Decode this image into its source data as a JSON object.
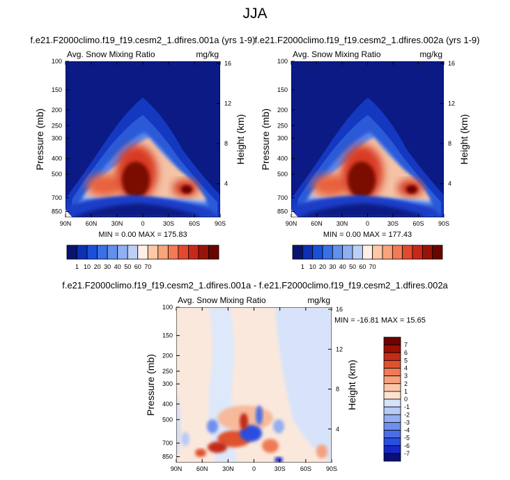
{
  "page_title": "JJA",
  "colors": {
    "top_colorbar": [
      "#08146e",
      "#0d30b4",
      "#1a4fd8",
      "#3a6fe6",
      "#6390ec",
      "#8fb0f2",
      "#bcd0f7",
      "#fff0e6",
      "#fcc8a8",
      "#f8a47d",
      "#f27a54",
      "#e24a2f",
      "#c8281a",
      "#981409",
      "#6a0500"
    ],
    "diff_colorbar": [
      "#0a0f7a",
      "#1428c8",
      "#2a4ee0",
      "#4b6ee8",
      "#6e8fee",
      "#93aef2",
      "#b7cbf7",
      "#d6e3fa",
      "#fbe3d0",
      "#fbc7a8",
      "#f7a07e",
      "#ef7a55",
      "#e0512e",
      "#c32c18",
      "#980f06",
      "#6b0300"
    ]
  },
  "chart_data": [
    {
      "type": "heatmap",
      "title": "f.e21.F2000climo.f19_f19.cesm2_1.dfires.001a (yrs 1-9)",
      "left_label": "Avg. Snow Mixing Ratio",
      "right_label": "mg/kg",
      "xlabel": "",
      "ylabel": "Pressure (mb)",
      "y2label": "Height (km)",
      "x_ticks": [
        "90N",
        "60N",
        "30N",
        "0",
        "30S",
        "60S",
        "90S"
      ],
      "x_values": [
        90,
        60,
        30,
        0,
        -30,
        -60,
        -90
      ],
      "y_ticks": [
        "100",
        "150",
        "200",
        "250",
        "300",
        "400",
        "500",
        "700",
        "850"
      ],
      "y_values": [
        100,
        150,
        200,
        250,
        300,
        400,
        500,
        700,
        850
      ],
      "y2_ticks": [
        "16",
        "12",
        "8",
        "4"
      ],
      "y2_values": [
        16,
        12,
        8,
        4
      ],
      "ylim": [
        100,
        925
      ],
      "stats": "MIN =   0.00  MAX = 175.83",
      "colorbar_labels": [
        "1",
        "10",
        "20",
        "30",
        "40",
        "50",
        "60",
        "70"
      ],
      "peaks": [
        {
          "lat": 15,
          "p": 480,
          "value": 175.83
        },
        {
          "lat": -40,
          "p": 650,
          "value": 120
        },
        {
          "lat": 50,
          "p": 620,
          "value": 60
        }
      ]
    },
    {
      "type": "heatmap",
      "title": "f.e21.F2000climo.f19_f19.cesm2_1.dfires.002a (yrs 1-9)",
      "left_label": "Avg. Snow Mixing Ratio",
      "right_label": "mg/kg",
      "xlabel": "",
      "ylabel": "Pressure (mb)",
      "y2label": "Height (km)",
      "x_ticks": [
        "90N",
        "60N",
        "30N",
        "0",
        "30S",
        "60S",
        "90S"
      ],
      "x_values": [
        90,
        60,
        30,
        0,
        -30,
        -60,
        -90
      ],
      "y_ticks": [
        "100",
        "150",
        "200",
        "250",
        "300",
        "400",
        "500",
        "700",
        "850"
      ],
      "y_values": [
        100,
        150,
        200,
        250,
        300,
        400,
        500,
        700,
        850
      ],
      "y2_ticks": [
        "16",
        "12",
        "8",
        "4"
      ],
      "y2_values": [
        16,
        12,
        8,
        4
      ],
      "ylim": [
        100,
        925
      ],
      "stats": "MIN =   0.00  MAX = 177.43",
      "colorbar_labels": [
        "1",
        "10",
        "20",
        "30",
        "40",
        "50",
        "60",
        "70"
      ],
      "peaks": [
        {
          "lat": 15,
          "p": 480,
          "value": 177.43
        },
        {
          "lat": -40,
          "p": 650,
          "value": 120
        },
        {
          "lat": 50,
          "p": 620,
          "value": 60
        }
      ]
    },
    {
      "type": "heatmap",
      "title": "f.e21.F2000climo.f19_f19.cesm2_1.dfires.001a - f.e21.F2000climo.f19_f19.cesm2_1.dfires.002a",
      "left_label": "Avg. Snow Mixing Ratio",
      "right_label": "mg/kg",
      "xlabel": "",
      "ylabel": "Pressure (mb)",
      "y2label": "Height (km)",
      "x_ticks": [
        "90N",
        "60N",
        "30N",
        "0",
        "30S",
        "60S",
        "90S"
      ],
      "x_values": [
        90,
        60,
        30,
        0,
        -30,
        -60,
        -90
      ],
      "y_ticks": [
        "100",
        "150",
        "200",
        "250",
        "300",
        "400",
        "500",
        "700",
        "850"
      ],
      "y_values": [
        100,
        150,
        200,
        250,
        300,
        400,
        500,
        700,
        850
      ],
      "y2_ticks": [
        "16",
        "12",
        "8",
        "4"
      ],
      "y2_values": [
        16,
        12,
        8,
        4
      ],
      "ylim": [
        100,
        925
      ],
      "stats": "MIN = -16.81  MAX =  15.65",
      "colorbar_labels": [
        "7",
        "6",
        "5",
        "4",
        "3",
        "2",
        "1",
        "0",
        "-1",
        "-2",
        "-3",
        "-4",
        "-5",
        "-6",
        "-7"
      ]
    }
  ]
}
